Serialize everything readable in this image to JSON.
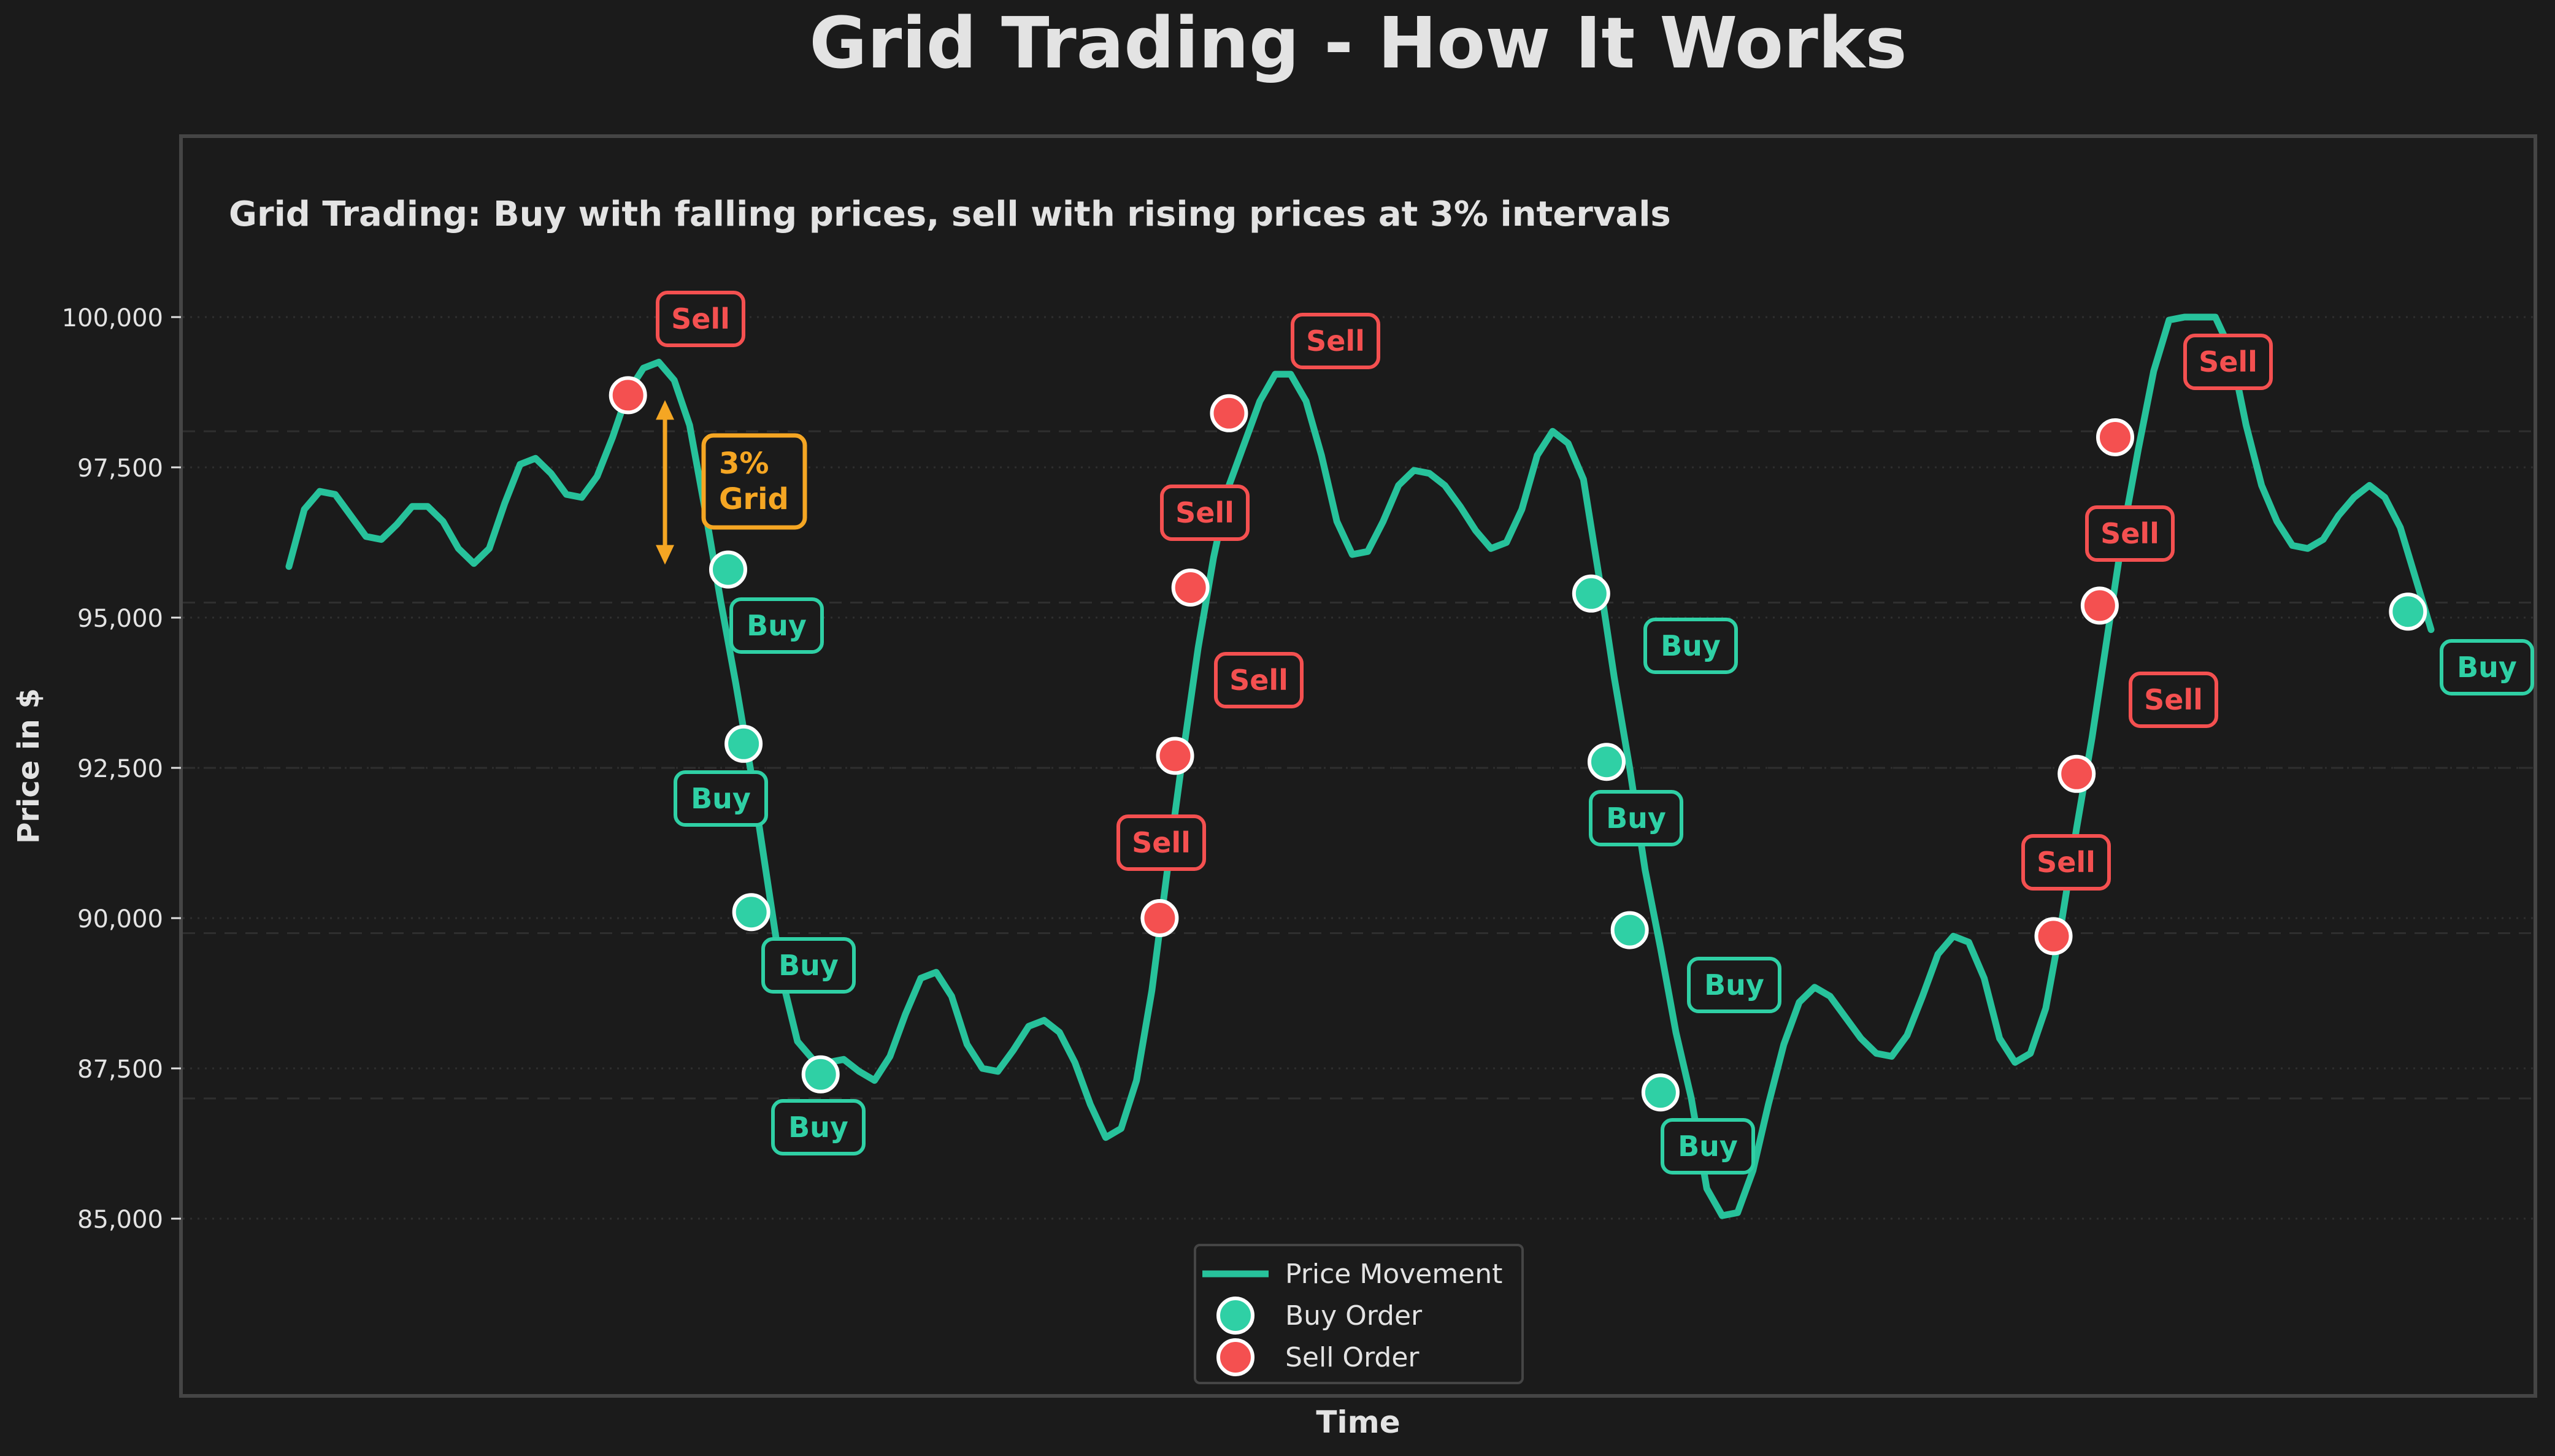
{
  "figure": {
    "title": "Grid Trading - How It Works"
  },
  "colors": {
    "background": "#1b1b1b",
    "axes_border": "#454545",
    "text": "#e3e3e3",
    "grid": "#2f2f2f",
    "price_line": "#27c29b",
    "buy": "#2fd0a5",
    "sell": "#f45050",
    "annotation": "#f5a623"
  },
  "chart_data": {
    "type": "line",
    "title": "Grid Trading: Buy with falling prices, sell with rising prices at 3% intervals",
    "xlabel": "Time",
    "ylabel": "Price in $",
    "x_tick_labels": [],
    "ylim": [
      81300,
      103700
    ],
    "yticks": [
      85000,
      87500,
      90000,
      92500,
      95000,
      97500,
      100000
    ],
    "ytick_labels": [
      "85,000",
      "87,500",
      "90,000",
      "92,500",
      "95,000",
      "97,500",
      "100,000"
    ],
    "grid": true,
    "grid_levels": [
      87000,
      89750,
      92500,
      95250,
      98100
    ],
    "legend": {
      "position": "bottom-center",
      "entries": [
        {
          "label": "Price Movement",
          "kind": "line",
          "color": "#27c29b"
        },
        {
          "label": "Buy Order",
          "kind": "marker",
          "color": "#2fd0a5"
        },
        {
          "label": "Sell Order",
          "kind": "marker",
          "color": "#f45050"
        }
      ]
    },
    "series": [
      {
        "name": "Price Movement",
        "points": [
          [
            0,
            95850
          ],
          [
            2,
            96800
          ],
          [
            4,
            97100
          ],
          [
            6,
            97050
          ],
          [
            8,
            96700
          ],
          [
            10,
            96350
          ],
          [
            12,
            96300
          ],
          [
            14,
            96550
          ],
          [
            16,
            96850
          ],
          [
            18,
            96850
          ],
          [
            20,
            96600
          ],
          [
            22,
            96150
          ],
          [
            24,
            95900
          ],
          [
            26,
            96150
          ],
          [
            28,
            96900
          ],
          [
            30,
            97550
          ],
          [
            32,
            97650
          ],
          [
            34,
            97400
          ],
          [
            36,
            97050
          ],
          [
            38,
            97000
          ],
          [
            40,
            97350
          ],
          [
            42,
            98000
          ],
          [
            44,
            98750
          ],
          [
            46,
            99150
          ],
          [
            48,
            99250
          ],
          [
            50,
            98950
          ],
          [
            52,
            98200
          ],
          [
            54,
            96800
          ],
          [
            56,
            95300
          ],
          [
            58,
            93900
          ],
          [
            60,
            92400
          ],
          [
            62,
            90700
          ],
          [
            64,
            89000
          ],
          [
            66,
            87950
          ],
          [
            68,
            87650
          ],
          [
            70,
            87600
          ],
          [
            72,
            87650
          ],
          [
            74,
            87450
          ],
          [
            76,
            87300
          ],
          [
            78,
            87700
          ],
          [
            80,
            88400
          ],
          [
            82,
            89000
          ],
          [
            84,
            89100
          ],
          [
            86,
            88700
          ],
          [
            88,
            87900
          ],
          [
            90,
            87500
          ],
          [
            92,
            87450
          ],
          [
            94,
            87800
          ],
          [
            96,
            88200
          ],
          [
            98,
            88300
          ],
          [
            100,
            88100
          ],
          [
            102,
            87600
          ],
          [
            104,
            86900
          ],
          [
            106,
            86350
          ],
          [
            108,
            86500
          ],
          [
            110,
            87300
          ],
          [
            112,
            88800
          ],
          [
            114,
            90800
          ],
          [
            116,
            92700
          ],
          [
            118,
            94500
          ],
          [
            120,
            96000
          ],
          [
            122,
            97200
          ],
          [
            124,
            97900
          ],
          [
            126,
            98600
          ],
          [
            128,
            99050
          ],
          [
            130,
            99050
          ],
          [
            132,
            98600
          ],
          [
            134,
            97700
          ],
          [
            136,
            96600
          ],
          [
            138,
            96050
          ],
          [
            140,
            96100
          ],
          [
            142,
            96600
          ],
          [
            144,
            97200
          ],
          [
            146,
            97450
          ],
          [
            148,
            97400
          ],
          [
            150,
            97200
          ],
          [
            152,
            96850
          ],
          [
            154,
            96450
          ],
          [
            156,
            96150
          ],
          [
            158,
            96250
          ],
          [
            160,
            96800
          ],
          [
            162,
            97700
          ],
          [
            164,
            98100
          ],
          [
            166,
            97900
          ],
          [
            168,
            97300
          ],
          [
            170,
            95700
          ],
          [
            172,
            94000
          ],
          [
            174,
            92500
          ],
          [
            176,
            90800
          ],
          [
            178,
            89500
          ],
          [
            180,
            88100
          ],
          [
            182,
            87000
          ],
          [
            184,
            85500
          ],
          [
            186,
            85050
          ],
          [
            188,
            85100
          ],
          [
            190,
            85800
          ],
          [
            192,
            86900
          ],
          [
            194,
            87900
          ],
          [
            196,
            88600
          ],
          [
            198,
            88850
          ],
          [
            200,
            88700
          ],
          [
            202,
            88350
          ],
          [
            204,
            88000
          ],
          [
            206,
            87750
          ],
          [
            208,
            87700
          ],
          [
            210,
            88050
          ],
          [
            212,
            88700
          ],
          [
            214,
            89400
          ],
          [
            216,
            89700
          ],
          [
            218,
            89600
          ],
          [
            220,
            89000
          ],
          [
            222,
            88000
          ],
          [
            224,
            87600
          ],
          [
            226,
            87750
          ],
          [
            228,
            88500
          ],
          [
            230,
            89900
          ],
          [
            232,
            91500
          ],
          [
            234,
            93000
          ],
          [
            236,
            94700
          ],
          [
            238,
            96400
          ],
          [
            240,
            97800
          ],
          [
            242,
            99100
          ],
          [
            244,
            99950
          ],
          [
            246,
            100000
          ],
          [
            248,
            100000
          ],
          [
            250,
            100000
          ],
          [
            252,
            99450
          ],
          [
            254,
            98200
          ],
          [
            256,
            97200
          ],
          [
            258,
            96600
          ],
          [
            260,
            96200
          ],
          [
            262,
            96150
          ],
          [
            264,
            96300
          ],
          [
            266,
            96700
          ],
          [
            268,
            97000
          ],
          [
            270,
            97200
          ],
          [
            272,
            97000
          ],
          [
            274,
            96500
          ],
          [
            276,
            95650
          ],
          [
            278,
            94800
          ]
        ]
      }
    ],
    "buy_orders": [
      {
        "x": 57,
        "y": 95800,
        "label": "Buy"
      },
      {
        "x": 59,
        "y": 92900,
        "label": "Buy"
      },
      {
        "x": 60,
        "y": 90100,
        "label": "Buy"
      },
      {
        "x": 69,
        "y": 87400,
        "label": "Buy"
      },
      {
        "x": 169,
        "y": 95400,
        "label": "Buy"
      },
      {
        "x": 171,
        "y": 92600,
        "label": "Buy"
      },
      {
        "x": 174,
        "y": 89800,
        "label": "Buy"
      },
      {
        "x": 178,
        "y": 87100,
        "label": "Buy"
      },
      {
        "x": 275,
        "y": 95100,
        "label": "Buy"
      }
    ],
    "sell_orders": [
      {
        "x": 44,
        "y": 98700,
        "label": "Sell"
      },
      {
        "x": 113,
        "y": 90000,
        "label": "Sell"
      },
      {
        "x": 115,
        "y": 92700,
        "label": "Sell"
      },
      {
        "x": 117,
        "y": 95500,
        "label": "Sell"
      },
      {
        "x": 122,
        "y": 98400,
        "label": "Sell"
      },
      {
        "x": 229,
        "y": 89700,
        "label": "Sell"
      },
      {
        "x": 232,
        "y": 92400,
        "label": "Sell"
      },
      {
        "x": 235,
        "y": 95200,
        "label": "Sell"
      },
      {
        "x": 237,
        "y": 98000,
        "label": "Sell"
      }
    ],
    "grid_annotation": {
      "lines": [
        "3%",
        "Grid"
      ],
      "arrow_from": 95800,
      "arrow_to": 98700
    }
  }
}
